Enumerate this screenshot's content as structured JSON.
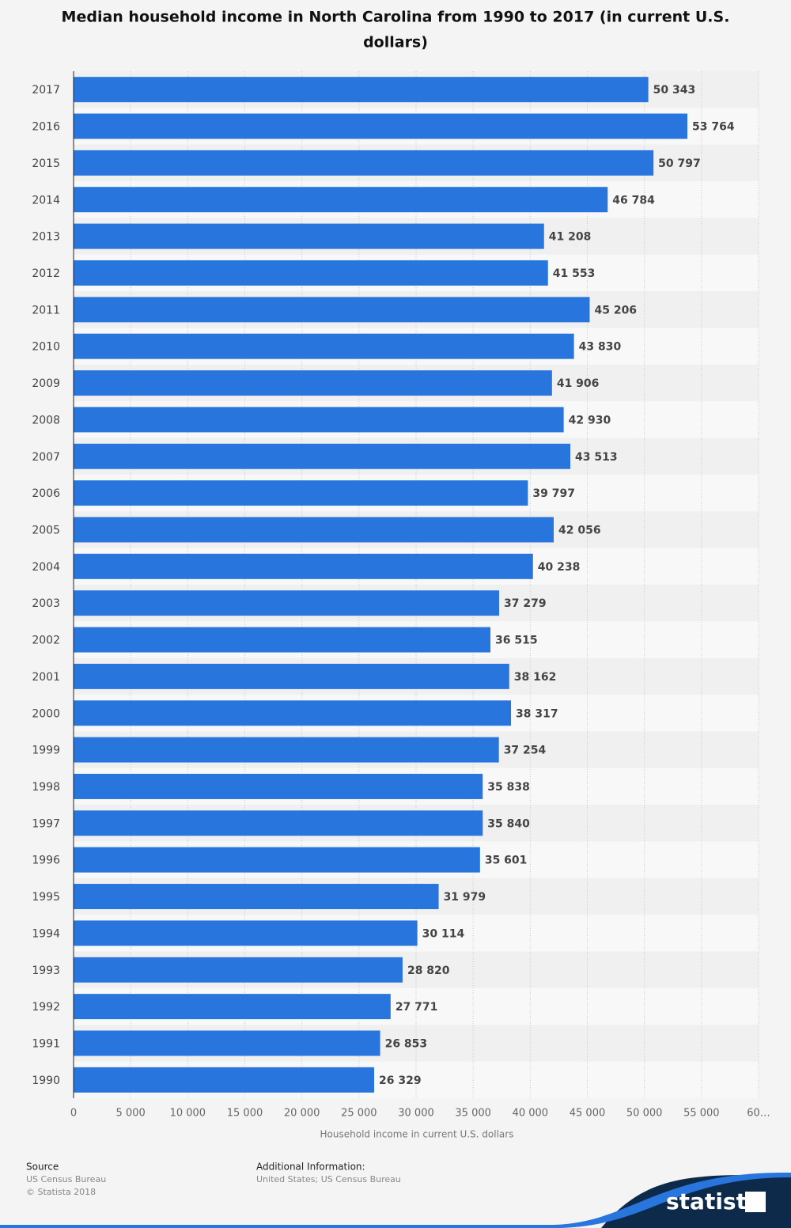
{
  "chart_data": {
    "type": "bar",
    "orientation": "horizontal",
    "title": "Median household income in North Carolina from 1990 to 2017 (in current U.S. dollars)",
    "xlabel": "Household income in current U.S. dollars",
    "categories": [
      "2017",
      "2016",
      "2015",
      "2014",
      "2013",
      "2012",
      "2011",
      "2010",
      "2009",
      "2008",
      "2007",
      "2006",
      "2005",
      "2004",
      "2003",
      "2002",
      "2001",
      "2000",
      "1999",
      "1998",
      "1997",
      "1996",
      "1995",
      "1994",
      "1993",
      "1992",
      "1991",
      "1990"
    ],
    "values": [
      50343,
      53764,
      50797,
      46784,
      41208,
      41553,
      45206,
      43830,
      41906,
      42930,
      43513,
      39797,
      42056,
      40238,
      37279,
      36515,
      38162,
      38317,
      37254,
      35838,
      35840,
      35601,
      31979,
      30114,
      28820,
      27771,
      26853,
      26329
    ],
    "value_labels": [
      "50 343",
      "53 764",
      "50 797",
      "46 784",
      "41 208",
      "41 553",
      "45 206",
      "43 830",
      "41 906",
      "42 930",
      "43 513",
      "39 797",
      "42 056",
      "40 238",
      "37 279",
      "36 515",
      "38 162",
      "38 317",
      "37 254",
      "35 838",
      "35 840",
      "35 601",
      "31 979",
      "30 114",
      "28 820",
      "27 771",
      "26 853",
      "26 329"
    ],
    "color": "#2876dd",
    "xlim": [
      0,
      60000
    ],
    "xticks": [
      0,
      {
        "value": 5000,
        "label": "5 000"
      },
      {
        "value": 10000,
        "label": "10 000"
      },
      {
        "value": 15000,
        "label": "15 000"
      },
      {
        "value": 20000,
        "label": "20 000"
      },
      {
        "value": 25000,
        "label": "25 000"
      },
      {
        "value": 30000,
        "label": "30 000"
      },
      {
        "value": 35000,
        "label": "35 000"
      },
      {
        "value": 40000,
        "label": "40 000"
      },
      {
        "value": 45000,
        "label": "45 000"
      },
      {
        "value": 50000,
        "label": "50 000"
      },
      {
        "value": 55000,
        "label": "55 000"
      },
      {
        "value": 60000,
        "label": "60…"
      }
    ],
    "grid": true
  },
  "footer": {
    "source_title": "Source",
    "source_lines": [
      "US Census Bureau",
      "© Statista 2018"
    ],
    "info_title": "Additional Information:",
    "info_lines": [
      "United States; US Census Bureau"
    ],
    "brand": "statista"
  }
}
